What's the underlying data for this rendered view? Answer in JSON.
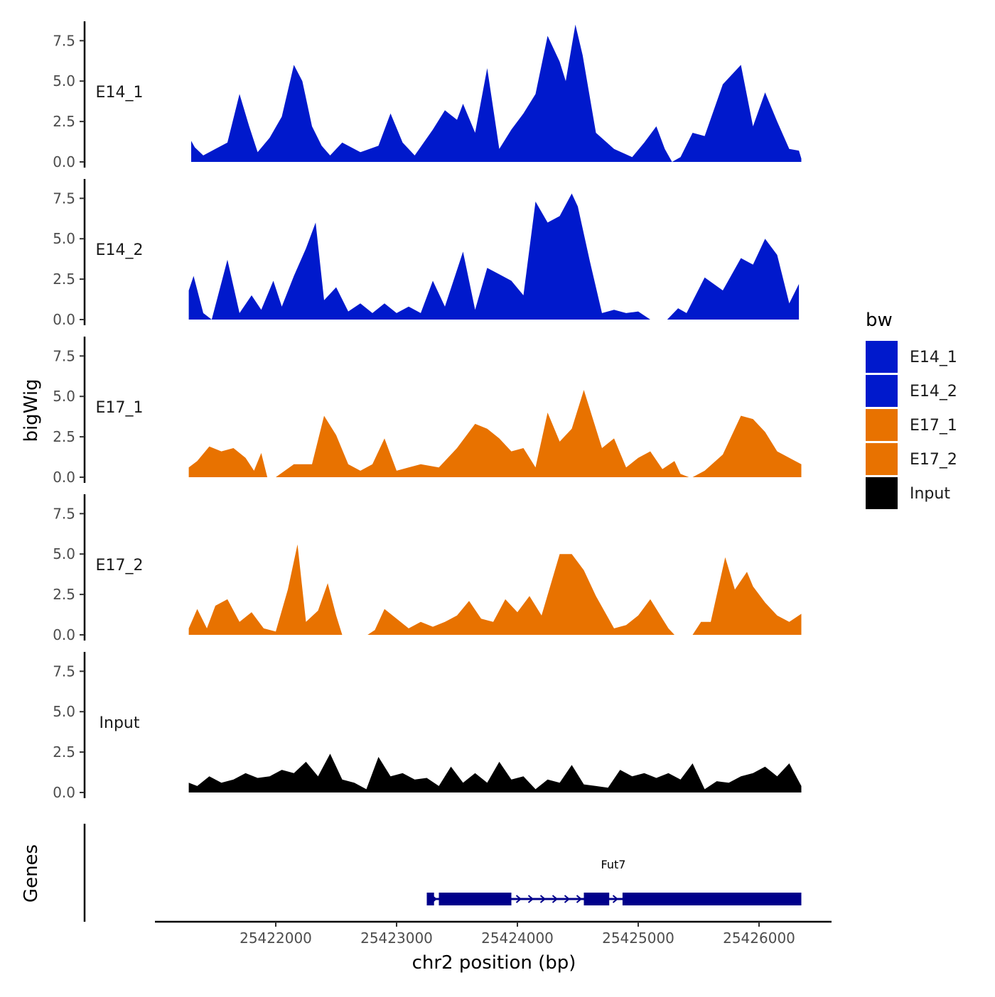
{
  "chart_data": {
    "type": "area",
    "y_axis_title": "bigWig",
    "genes_axis_title": "Genes",
    "x_axis_title": "chr2 position (bp)",
    "x_range": [
      25421000,
      25426600
    ],
    "x_ticks": [
      25422000,
      25423000,
      25424000,
      25425000,
      25426000
    ],
    "x_tick_labels": [
      "25422000",
      "25423000",
      "25424000",
      "25425000",
      "25426000"
    ],
    "y_range": [
      0,
      8.7
    ],
    "y_ticks": [
      0,
      2.5,
      5,
      7.5
    ],
    "y_tick_labels": [
      "0.0",
      "2.5",
      "5.0",
      "7.5"
    ],
    "legend": {
      "title": "bw",
      "entries": [
        {
          "label": "E14_1",
          "color": "#0019cc"
        },
        {
          "label": "E14_2",
          "color": "#0019cc"
        },
        {
          "label": "E17_1",
          "color": "#e87200"
        },
        {
          "label": "E17_2",
          "color": "#e87200"
        },
        {
          "label": "Input",
          "color": "#000000"
        }
      ]
    },
    "series": [
      {
        "name": "E14_1",
        "color": "#0019cc",
        "x": [
          25421300,
          25421330,
          25421400,
          25421500,
          25421600,
          25421700,
          25421780,
          25421850,
          25421950,
          25422050,
          25422150,
          25422220,
          25422300,
          25422380,
          25422450,
          25422550,
          25422700,
          25422850,
          25422950,
          25423050,
          25423150,
          25423300,
          25423400,
          25423500,
          25423550,
          25423650,
          25423750,
          25423850,
          25423950,
          25424050,
          25424150,
          25424250,
          25424350,
          25424400,
          25424480,
          25424540,
          25424650,
          25424800,
          25424950,
          25425050,
          25425150,
          25425220,
          25425280,
          25425350,
          25425450,
          25425550,
          25425700,
          25425850,
          25425950,
          25426050,
          25426150,
          25426250,
          25426330,
          25426350
        ],
        "y": [
          1.3,
          0.9,
          0.4,
          0.8,
          1.2,
          4.2,
          2.2,
          0.6,
          1.5,
          2.8,
          6.0,
          5.0,
          2.2,
          1.0,
          0.4,
          1.2,
          0.6,
          1.0,
          3.0,
          1.2,
          0.4,
          2.0,
          3.2,
          2.6,
          3.6,
          1.8,
          5.8,
          0.8,
          2.0,
          3.0,
          4.2,
          7.8,
          6.2,
          5.0,
          8.5,
          6.6,
          1.8,
          0.8,
          0.3,
          1.2,
          2.2,
          0.8,
          0.0,
          0.3,
          1.8,
          1.6,
          4.8,
          6.0,
          2.2,
          4.3,
          2.5,
          0.8,
          0.7,
          0.2
        ]
      },
      {
        "name": "E14_2",
        "color": "#0019cc",
        "x": [
          25421280,
          25421320,
          25421400,
          25421470,
          25421600,
          25421700,
          25421800,
          25421880,
          25421980,
          25422050,
          25422150,
          25422250,
          25422330,
          25422400,
          25422500,
          25422600,
          25422700,
          25422800,
          25422900,
          25423000,
          25423100,
          25423200,
          25423300,
          25423400,
          25423550,
          25423650,
          25423750,
          25423850,
          25423950,
          25424050,
          25424150,
          25424250,
          25424350,
          25424450,
          25424500,
          25424600,
          25424700,
          25424800,
          25424900,
          25425000,
          25425100,
          25425180,
          25425240,
          25425330,
          25425400,
          25425550,
          25425700,
          25425850,
          25425950,
          25426050,
          25426150,
          25426250,
          25426330
        ],
        "y": [
          1.8,
          2.7,
          0.4,
          0.0,
          3.7,
          0.4,
          1.5,
          0.6,
          2.4,
          0.8,
          2.7,
          4.4,
          6.0,
          1.2,
          2.0,
          0.5,
          1.0,
          0.4,
          1.0,
          0.4,
          0.8,
          0.4,
          2.4,
          0.8,
          4.2,
          0.6,
          3.2,
          2.8,
          2.4,
          1.5,
          7.3,
          6.0,
          6.4,
          7.8,
          7.0,
          3.6,
          0.4,
          0.6,
          0.4,
          0.5,
          0.0,
          0.0,
          0.0,
          0.7,
          0.4,
          2.6,
          1.8,
          3.8,
          3.4,
          5.0,
          4.0,
          1.0,
          2.2
        ]
      },
      {
        "name": "E17_1",
        "color": "#e87200",
        "x": [
          25421280,
          25421350,
          25421450,
          25421550,
          25421650,
          25421750,
          25421820,
          25421880,
          25421930,
          25422000,
          25422150,
          25422300,
          25422400,
          25422500,
          25422600,
          25422700,
          25422800,
          25422900,
          25423000,
          25423100,
          25423200,
          25423350,
          25423500,
          25423650,
          25423750,
          25423850,
          25423950,
          25424050,
          25424150,
          25424250,
          25424350,
          25424450,
          25424550,
          25424600,
          25424700,
          25424800,
          25424900,
          25425000,
          25425100,
          25425200,
          25425300,
          25425350,
          25425420,
          25425450,
          25425550,
          25425700,
          25425850,
          25425950,
          25426050,
          25426150,
          25426300,
          25426350
        ],
        "y": [
          0.6,
          1.0,
          1.9,
          1.6,
          1.8,
          1.2,
          0.4,
          1.5,
          0.0,
          0.0,
          0.8,
          0.8,
          3.8,
          2.6,
          0.8,
          0.4,
          0.8,
          2.4,
          0.4,
          0.6,
          0.8,
          0.6,
          1.8,
          3.3,
          3.0,
          2.4,
          1.6,
          1.8,
          0.6,
          4.0,
          2.2,
          3.0,
          5.4,
          4.2,
          1.8,
          2.4,
          0.6,
          1.2,
          1.6,
          0.5,
          1.0,
          0.2,
          0.0,
          0.0,
          0.4,
          1.4,
          3.8,
          3.6,
          2.8,
          1.6,
          1.0,
          0.8
        ]
      },
      {
        "name": "E17_2",
        "color": "#e87200",
        "x": [
          25421280,
          25421350,
          25421430,
          25421500,
          25421600,
          25421700,
          25421800,
          25421900,
          25422000,
          25422100,
          25422180,
          25422250,
          25422350,
          25422430,
          25422500,
          25422550,
          25422620,
          25422700,
          25422760,
          25422820,
          25422900,
          25423000,
          25423100,
          25423200,
          25423300,
          25423400,
          25423500,
          25423600,
          25423700,
          25423800,
          25423900,
          25424000,
          25424100,
          25424200,
          25424350,
          25424450,
          25424550,
          25424650,
          25424800,
          25424900,
          25425000,
          25425100,
          25425200,
          25425250,
          25425300,
          25425420,
          25425450,
          25425520,
          25425600,
          25425720,
          25425800,
          25425900,
          25425950,
          25426050,
          25426150,
          25426250,
          25426350
        ],
        "y": [
          0.4,
          1.6,
          0.4,
          1.8,
          2.2,
          0.8,
          1.4,
          0.4,
          0.2,
          2.8,
          5.6,
          0.8,
          1.5,
          3.2,
          1.2,
          0.0,
          0.0,
          0.0,
          0.0,
          0.3,
          1.6,
          1.0,
          0.4,
          0.8,
          0.5,
          0.8,
          1.2,
          2.1,
          1.0,
          0.8,
          2.2,
          1.4,
          2.4,
          1.2,
          5.0,
          5.0,
          4.0,
          2.4,
          0.4,
          0.6,
          1.2,
          2.2,
          1.0,
          0.4,
          0.0,
          0.0,
          0.0,
          0.8,
          0.8,
          4.8,
          2.8,
          3.9,
          3.0,
          2.0,
          1.2,
          0.8,
          1.3
        ]
      },
      {
        "name": "Input",
        "color": "#000000",
        "x": [
          25421280,
          25421350,
          25421450,
          25421550,
          25421650,
          25421750,
          25421850,
          25421950,
          25422050,
          25422150,
          25422250,
          25422350,
          25422450,
          25422550,
          25422650,
          25422750,
          25422850,
          25422950,
          25423050,
          25423150,
          25423250,
          25423350,
          25423450,
          25423550,
          25423650,
          25423750,
          25423850,
          25423950,
          25424050,
          25424150,
          25424250,
          25424350,
          25424450,
          25424550,
          25424650,
          25424750,
          25424850,
          25424950,
          25425050,
          25425150,
          25425250,
          25425350,
          25425450,
          25425550,
          25425650,
          25425750,
          25425850,
          25425950,
          25426050,
          25426150,
          25426250,
          25426350
        ],
        "y": [
          0.6,
          0.4,
          1.0,
          0.6,
          0.8,
          1.2,
          0.9,
          1.0,
          1.4,
          1.2,
          1.9,
          1.0,
          2.4,
          0.8,
          0.6,
          0.2,
          2.2,
          1.0,
          1.2,
          0.8,
          0.9,
          0.4,
          1.6,
          0.6,
          1.2,
          0.6,
          1.9,
          0.8,
          1.0,
          0.2,
          0.8,
          0.6,
          1.7,
          0.5,
          0.4,
          0.3,
          1.4,
          1.0,
          1.2,
          0.9,
          1.2,
          0.8,
          1.8,
          0.2,
          0.7,
          0.6,
          1.0,
          1.2,
          1.6,
          1.0,
          1.8,
          0.4
        ]
      }
    ],
    "genes": [
      {
        "name": "Fut7",
        "color": "#00008b",
        "start": 25423250,
        "end": 25426350,
        "strand": "+",
        "exons": [
          [
            25423250,
            25423310
          ],
          [
            25423350,
            25423950
          ],
          [
            25424550,
            25424760
          ],
          [
            25424870,
            25426350
          ]
        ]
      }
    ]
  }
}
